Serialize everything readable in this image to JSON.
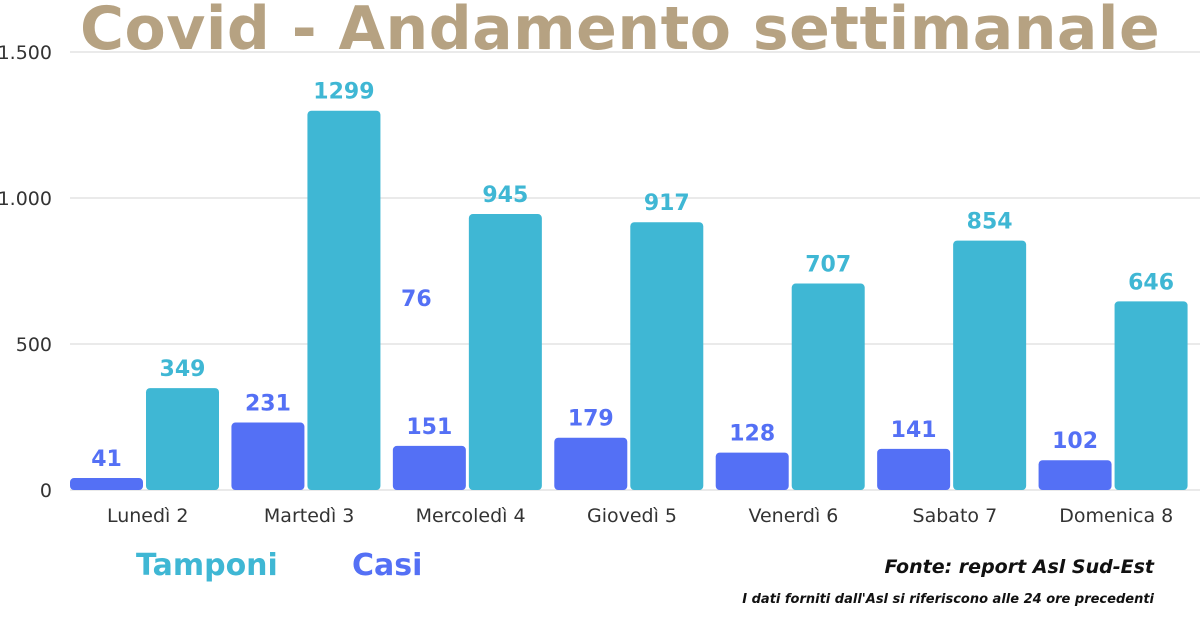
{
  "chart_data": {
    "type": "bar",
    "title": "Covid - Andamento settimanale",
    "categories": [
      "Lunedì 2",
      "Martedì 3",
      "Mercoledì  4",
      "Giovedì 5",
      "Venerdì 6",
      "Sabato 7",
      "Domenica 8"
    ],
    "series": [
      {
        "name": "Casi",
        "color": "#5470f5",
        "values": [
          41,
          231,
          151,
          179,
          128,
          141,
          102
        ],
        "labels": [
          "41",
          "231",
          "151",
          "179",
          "128",
          "141",
          "102"
        ]
      },
      {
        "name": "Tamponi",
        "color": "#3fb7d4",
        "values": [
          349,
          1299,
          945,
          917,
          707,
          854,
          646
        ],
        "labels": [
          "349",
          "1299",
          "945",
          "917",
          "707",
          "854",
          "646"
        ]
      }
    ],
    "ylim": [
      0,
      1500
    ],
    "yticks": [
      0,
      500,
      1000,
      1500
    ],
    "ytick_labels": [
      "0",
      "500",
      "1.000",
      "1.500"
    ],
    "xlabel": "",
    "ylabel": "",
    "grid": true,
    "extra_annotation": "76"
  },
  "legend": {
    "tamponi": "Tamponi",
    "casi": "Casi"
  },
  "source": "Fonte: report Asl Sud-Est",
  "note": "I dati forniti dall'Asl si riferiscono alle 24 ore precedenti"
}
